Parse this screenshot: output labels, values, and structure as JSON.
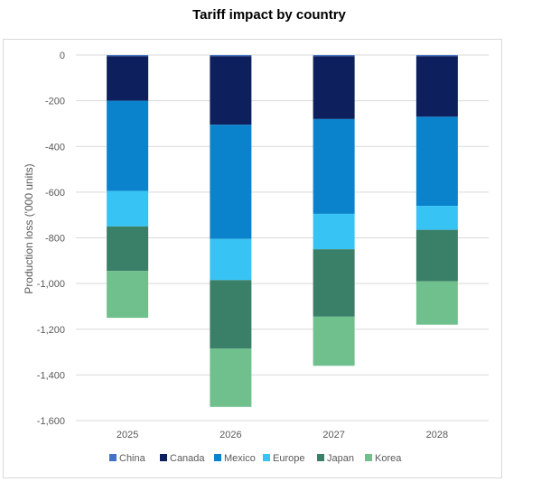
{
  "chart_data": {
    "type": "bar",
    "stacked": true,
    "title": "Tariff impact by country",
    "xlabel": "",
    "ylabel": "Production loss ('000 units)",
    "categories": [
      "2025",
      "2026",
      "2027",
      "2028"
    ],
    "ylim": [
      -1600,
      0
    ],
    "yticks": [
      0,
      -200,
      -400,
      -600,
      -800,
      -1000,
      -1200,
      -1400,
      -1600
    ],
    "ytick_labels": [
      "0",
      "-200",
      "-400",
      "-600",
      "-800",
      "-1,000",
      "-1,200",
      "-1,400",
      "-1,600"
    ],
    "grid": true,
    "legend_position": "bottom",
    "series": [
      {
        "name": "China",
        "color": "#4472c4",
        "values": [
          -5,
          -5,
          -5,
          -5
        ]
      },
      {
        "name": "Canada",
        "color": "#0d1f5c",
        "values": [
          -195,
          -300,
          -275,
          -265
        ]
      },
      {
        "name": "Mexico",
        "color": "#0a83cc",
        "values": [
          -395,
          -500,
          -415,
          -390
        ]
      },
      {
        "name": "Europe",
        "color": "#37c4f5",
        "values": [
          -155,
          -180,
          -155,
          -105
        ]
      },
      {
        "name": "Japan",
        "color": "#3a7f68",
        "values": [
          -195,
          -300,
          -295,
          -225
        ]
      },
      {
        "name": "Korea",
        "color": "#6fc08d",
        "values": [
          -205,
          -255,
          -215,
          -190
        ]
      }
    ]
  }
}
